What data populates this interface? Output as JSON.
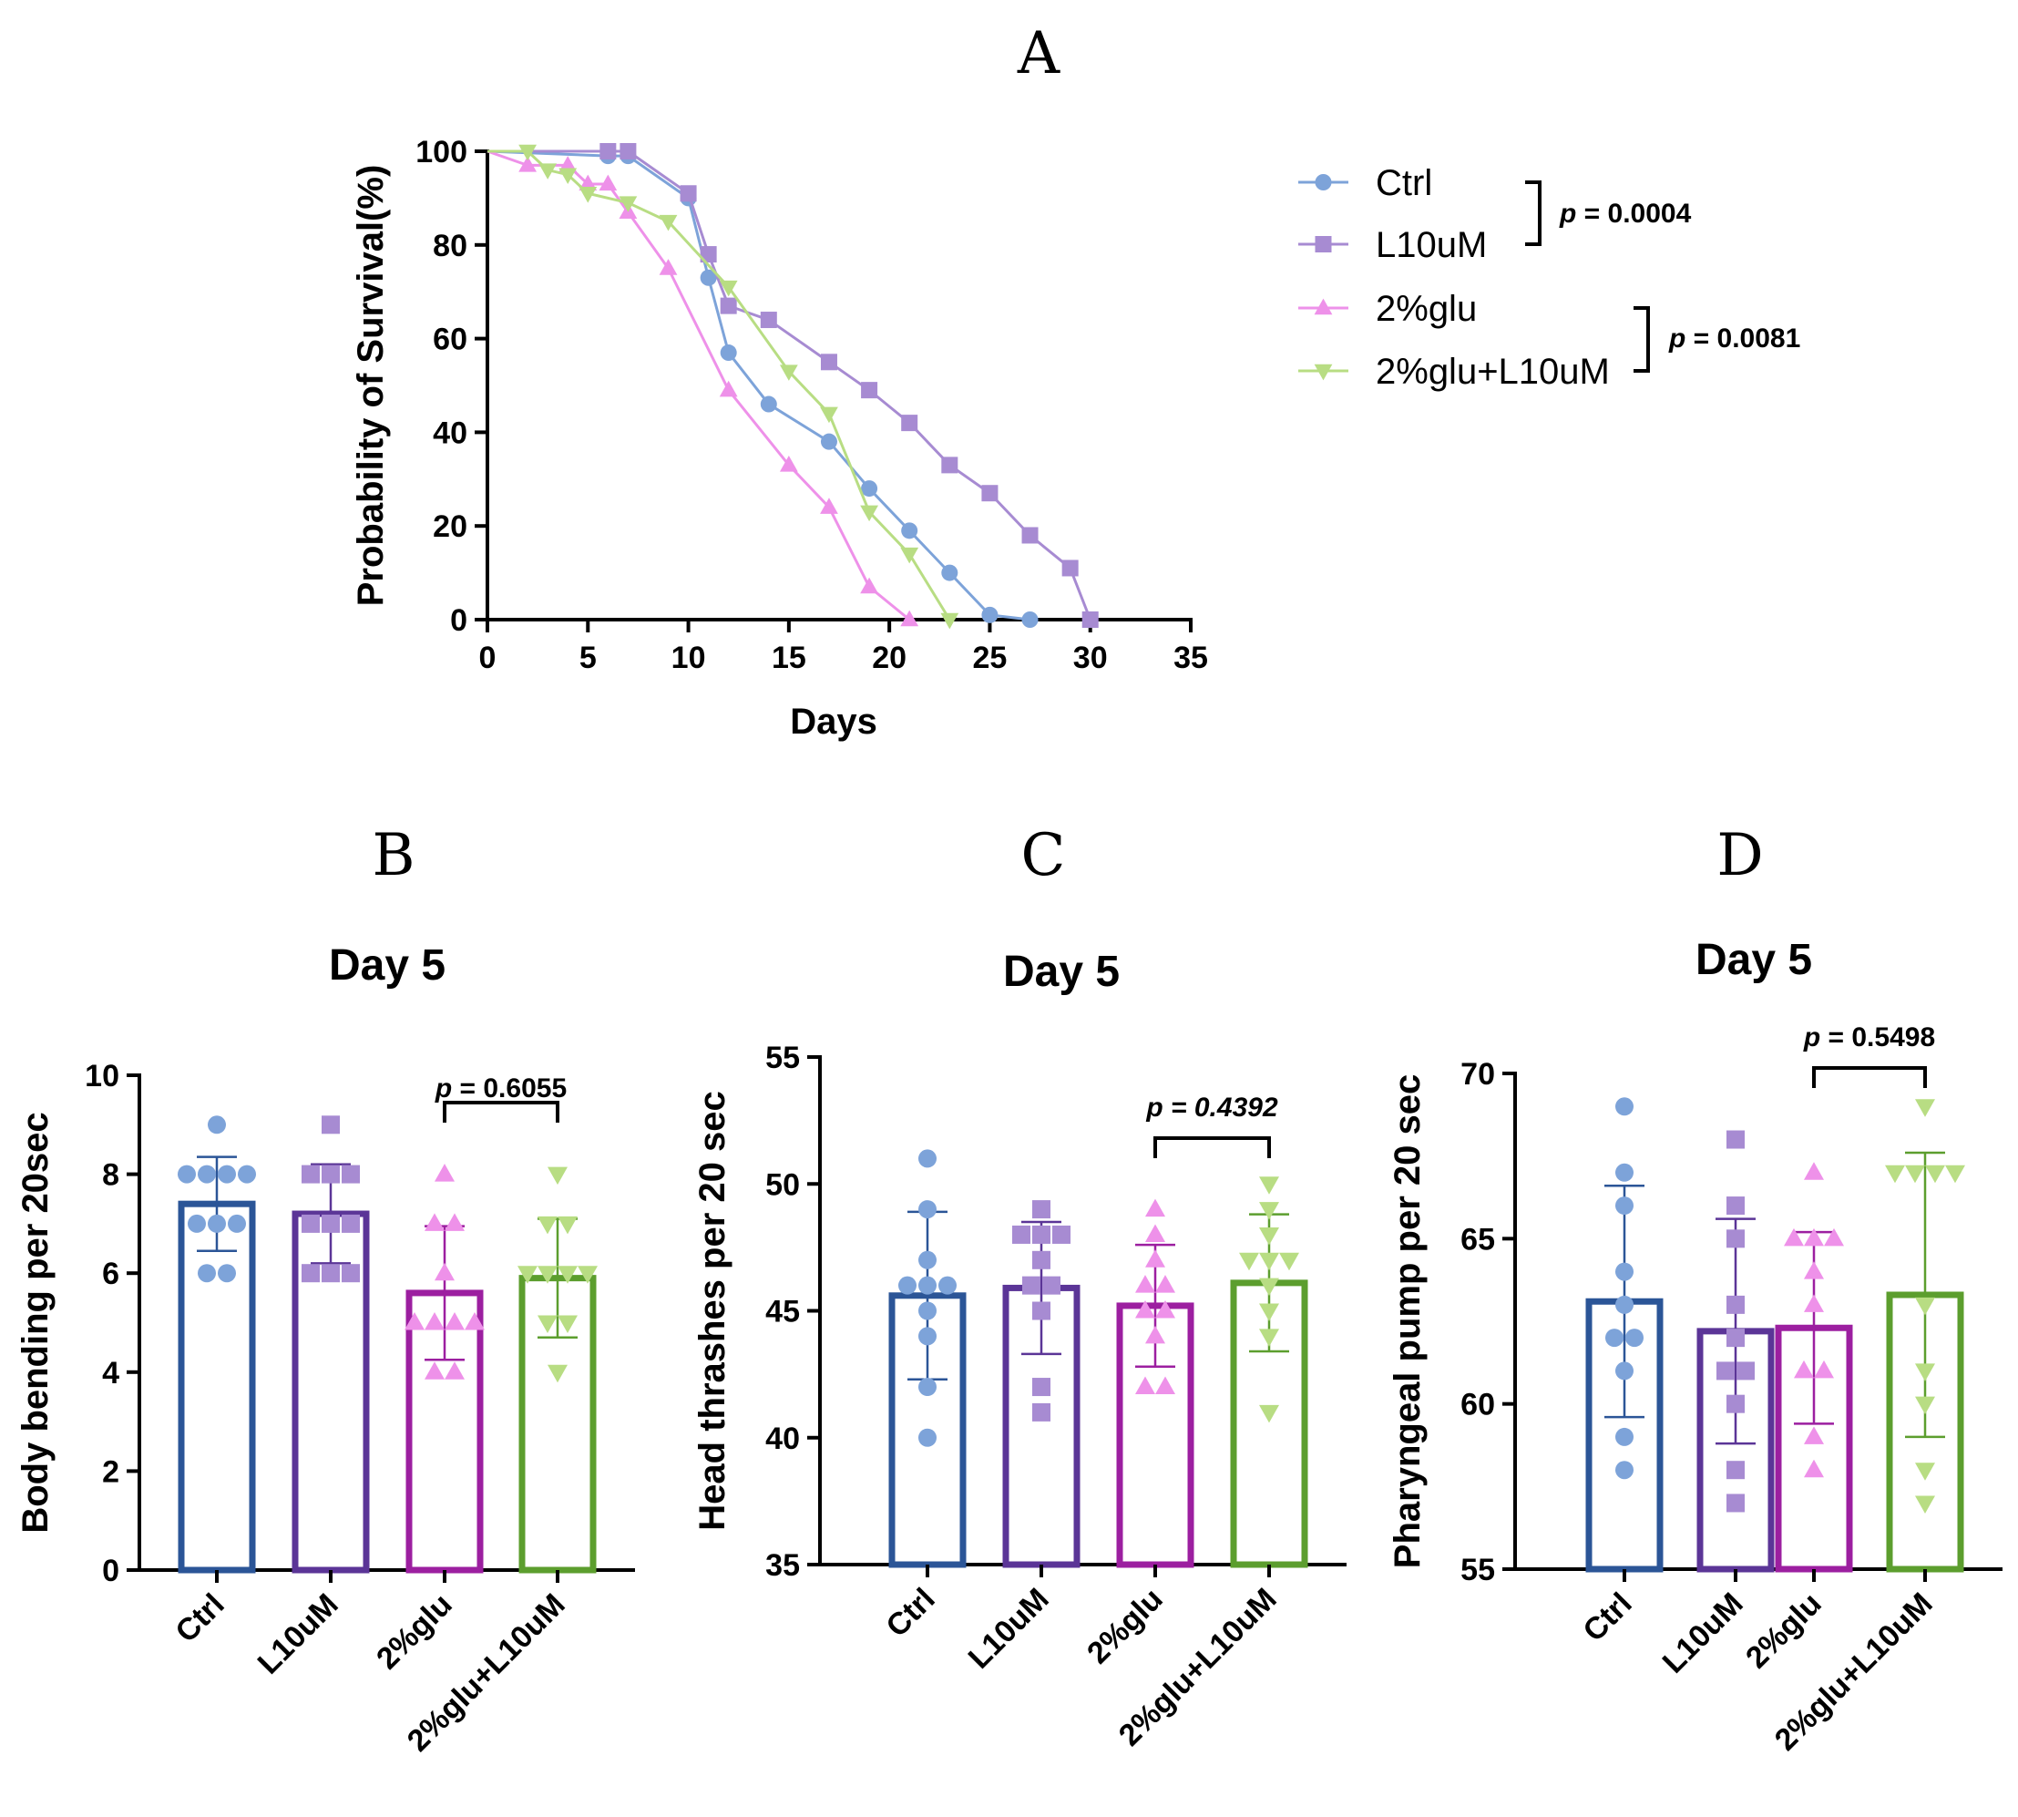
{
  "chart_data": [
    {
      "panel": "A",
      "type": "line",
      "title": "",
      "xlabel": "Days",
      "ylabel": "Probability of Survival(%)",
      "xlim": [
        0,
        35
      ],
      "ylim": [
        0,
        100
      ],
      "xticks": [
        "0",
        "5",
        "10",
        "15",
        "20",
        "25",
        "30",
        "35"
      ],
      "yticks": [
        "0",
        "20",
        "40",
        "60",
        "80",
        "100"
      ],
      "series": [
        {
          "name": "Ctrl",
          "marker": "circle",
          "color": "#7da3d9",
          "x": [
            0,
            6,
            7,
            10,
            11,
            12,
            14,
            17,
            19,
            21,
            23,
            25,
            27
          ],
          "y": [
            100,
            99,
            99,
            90,
            73,
            57,
            46,
            38,
            28,
            19,
            10,
            1,
            0
          ]
        },
        {
          "name": "L10uM",
          "marker": "square",
          "color": "#a78bd2",
          "x": [
            0,
            6,
            7,
            10,
            11,
            12,
            14,
            17,
            19,
            21,
            23,
            25,
            27,
            29,
            30
          ],
          "y": [
            100,
            100,
            100,
            91,
            78,
            67,
            64,
            55,
            49,
            42,
            33,
            27,
            18,
            11,
            0
          ]
        },
        {
          "name": "2%glu",
          "marker": "triangle-up",
          "color": "#ee91e9",
          "x": [
            0,
            2,
            4,
            5,
            6,
            7,
            9,
            12,
            15,
            17,
            19,
            21
          ],
          "y": [
            100,
            97,
            97,
            93,
            93,
            87,
            75,
            49,
            33,
            24,
            7,
            0
          ]
        },
        {
          "name": "2%glu+L10uM",
          "marker": "triangle-down",
          "color": "#b8dd83",
          "x": [
            0,
            2,
            3,
            4,
            5,
            7,
            9,
            12,
            15,
            17,
            19,
            21,
            23
          ],
          "y": [
            100,
            100,
            96,
            95,
            91,
            89,
            85,
            71,
            53,
            44,
            23,
            14,
            0
          ]
        }
      ],
      "annotations": [
        {
          "label": "p = 0.0004",
          "groups": [
            "Ctrl",
            "L10uM"
          ]
        },
        {
          "label": "p = 0.0081",
          "groups": [
            "2%glu",
            "2%glu+L10uM"
          ]
        }
      ],
      "legend": "right"
    },
    {
      "panel": "B",
      "type": "bar",
      "title": "Day 5",
      "xlabel": "",
      "ylabel": "Body bending per 20sec",
      "ylim": [
        0,
        10
      ],
      "yticks": [
        "0",
        "2",
        "4",
        "6",
        "8",
        "10"
      ],
      "categories": [
        "Ctrl",
        "L10uM",
        "2%glu",
        "2%glu+L10uM"
      ],
      "values": [
        7.4,
        7.2,
        5.6,
        5.9
      ],
      "sd": [
        0.95,
        1.0,
        1.35,
        1.2
      ],
      "points": [
        [
          9,
          8,
          8,
          8,
          8,
          7,
          7,
          7,
          6,
          6
        ],
        [
          9,
          8,
          8,
          8,
          7,
          7,
          7,
          6,
          6,
          6
        ],
        [
          8,
          7,
          7,
          6,
          5,
          5,
          5,
          5,
          4,
          4
        ],
        [
          8,
          7,
          7,
          6,
          6,
          6,
          6,
          5,
          5,
          4
        ]
      ],
      "annotation": {
        "label": "p = 0.6055",
        "italic": false,
        "between": [
          2,
          3
        ]
      }
    },
    {
      "panel": "C",
      "type": "bar",
      "title": "Day 5",
      "xlabel": "",
      "ylabel": "Head thrashes per 20 sec",
      "ylim": [
        35,
        55
      ],
      "yticks": [
        "35",
        "40",
        "45",
        "50",
        "55"
      ],
      "categories": [
        "Ctrl",
        "L10uM",
        "2%glu",
        "2%glu+L10uM"
      ],
      "values": [
        45.6,
        45.9,
        45.2,
        46.1
      ],
      "sd": [
        3.3,
        2.6,
        2.4,
        2.7
      ],
      "points": [
        [
          51,
          49,
          47,
          46,
          46,
          46,
          45,
          44,
          42,
          40
        ],
        [
          49,
          48,
          48,
          48,
          47,
          46,
          46,
          45,
          42,
          41
        ],
        [
          49,
          48,
          47,
          46,
          46,
          45,
          45,
          44,
          42,
          42
        ],
        [
          50,
          49,
          48,
          47,
          47,
          47,
          46,
          45,
          44,
          41
        ]
      ],
      "annotation": {
        "label": "p = 0.4392",
        "italic": true,
        "between": [
          2,
          3
        ]
      }
    },
    {
      "panel": "D",
      "type": "bar",
      "title": "Day 5",
      "xlabel": "",
      "ylabel": "Pharyngeal pump per 20 sec",
      "ylim": [
        55,
        70
      ],
      "yticks": [
        "55",
        "60",
        "65",
        "70"
      ],
      "categories": [
        "Ctrl",
        "L10uM",
        "2%glu",
        "2%glu+L10uM"
      ],
      "values": [
        63.1,
        62.2,
        62.3,
        63.3
      ],
      "sd": [
        3.5,
        3.4,
        2.9,
        4.3
      ],
      "points": [
        [
          69,
          67,
          66,
          64,
          63,
          62,
          62,
          61,
          59,
          58
        ],
        [
          68,
          66,
          65,
          63,
          62,
          61,
          61,
          58,
          57,
          60
        ],
        [
          67,
          65,
          65,
          65,
          64,
          63,
          61,
          61,
          59,
          58
        ],
        [
          69,
          67,
          67,
          67,
          67,
          63,
          61,
          60,
          58,
          57
        ]
      ],
      "annotation": {
        "label": "p = 0.5498",
        "italic": false,
        "between": [
          2,
          3
        ]
      }
    }
  ],
  "panel_letters": [
    "A",
    "B",
    "C",
    "D"
  ],
  "colors": {
    "ctrl_bar": "#2b5597",
    "l10_bar": "#5b3597",
    "glu_bar": "#9c1fa0",
    "glu_l10_bar": "#5c9e2e",
    "ctrl_pt": "#7da3d9",
    "l10_pt": "#a78bd2",
    "glu_pt": "#ee91e9",
    "glu_l10_pt": "#b8dd83"
  }
}
